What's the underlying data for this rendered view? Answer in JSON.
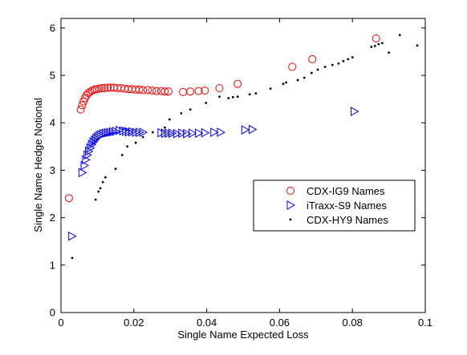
{
  "chart_data": {
    "type": "scatter",
    "title": "",
    "xlabel": "Single Name Expected Loss",
    "ylabel": "Single Name Hedge Notional",
    "xlim": [
      0,
      0.1
    ],
    "ylim": [
      0,
      6.2
    ],
    "xticks": [
      0,
      0.02,
      0.04,
      0.06,
      0.08,
      0.1
    ],
    "xtick_labels": [
      "0",
      "0.02",
      "0.04",
      "0.06",
      "0.08",
      "0.1"
    ],
    "yticks": [
      0,
      1,
      2,
      3,
      4,
      5,
      6
    ],
    "ytick_labels": [
      "0",
      "1",
      "2",
      "3",
      "4",
      "5",
      "6"
    ],
    "grid": false,
    "legend_position": "right",
    "series": [
      {
        "name": "CDX-IG9 Names",
        "marker": "circle",
        "color": "#ff0000",
        "points": [
          [
            0.0022,
            2.41
          ],
          [
            0.0054,
            4.28
          ],
          [
            0.0058,
            4.37
          ],
          [
            0.0062,
            4.45
          ],
          [
            0.0066,
            4.52
          ],
          [
            0.007,
            4.58
          ],
          [
            0.0075,
            4.62
          ],
          [
            0.008,
            4.65
          ],
          [
            0.0086,
            4.68
          ],
          [
            0.0092,
            4.7
          ],
          [
            0.0098,
            4.71
          ],
          [
            0.0105,
            4.72
          ],
          [
            0.0112,
            4.73
          ],
          [
            0.012,
            4.73
          ],
          [
            0.0128,
            4.74
          ],
          [
            0.0136,
            4.74
          ],
          [
            0.0145,
            4.74
          ],
          [
            0.0155,
            4.73
          ],
          [
            0.0165,
            4.73
          ],
          [
            0.0175,
            4.72
          ],
          [
            0.0185,
            4.71
          ],
          [
            0.0195,
            4.71
          ],
          [
            0.0205,
            4.7
          ],
          [
            0.0215,
            4.7
          ],
          [
            0.0225,
            4.69
          ],
          [
            0.0238,
            4.69
          ],
          [
            0.025,
            4.68
          ],
          [
            0.0262,
            4.67
          ],
          [
            0.0275,
            4.67
          ],
          [
            0.0285,
            4.66
          ],
          [
            0.0295,
            4.66
          ],
          [
            0.0335,
            4.65
          ],
          [
            0.0355,
            4.66
          ],
          [
            0.0378,
            4.67
          ],
          [
            0.0395,
            4.68
          ],
          [
            0.0435,
            4.73
          ],
          [
            0.0485,
            4.82
          ],
          [
            0.0635,
            5.18
          ],
          [
            0.069,
            5.34
          ],
          [
            0.0865,
            5.78
          ]
        ]
      },
      {
        "name": "iTraxx-S9 Names",
        "marker": "triangle-right",
        "color": "#0000ff",
        "points": [
          [
            0.003,
            1.61
          ],
          [
            0.0058,
            2.95
          ],
          [
            0.0064,
            3.1
          ],
          [
            0.0068,
            3.22
          ],
          [
            0.0072,
            3.32
          ],
          [
            0.0076,
            3.4
          ],
          [
            0.008,
            3.47
          ],
          [
            0.0084,
            3.54
          ],
          [
            0.0088,
            3.59
          ],
          [
            0.0092,
            3.63
          ],
          [
            0.0096,
            3.67
          ],
          [
            0.01,
            3.7
          ],
          [
            0.0105,
            3.73
          ],
          [
            0.011,
            3.75
          ],
          [
            0.0116,
            3.77
          ],
          [
            0.0122,
            3.78
          ],
          [
            0.0128,
            3.79
          ],
          [
            0.0135,
            3.8
          ],
          [
            0.0142,
            3.81
          ],
          [
            0.015,
            3.82
          ],
          [
            0.016,
            3.84
          ],
          [
            0.017,
            3.83
          ],
          [
            0.0178,
            3.82
          ],
          [
            0.0186,
            3.81
          ],
          [
            0.0195,
            3.81
          ],
          [
            0.0205,
            3.8
          ],
          [
            0.0215,
            3.8
          ],
          [
            0.0225,
            3.8
          ],
          [
            0.0275,
            3.79
          ],
          [
            0.0285,
            3.78
          ],
          [
            0.0295,
            3.78
          ],
          [
            0.0305,
            3.78
          ],
          [
            0.0318,
            3.77
          ],
          [
            0.0332,
            3.78
          ],
          [
            0.0345,
            3.77
          ],
          [
            0.036,
            3.78
          ],
          [
            0.0378,
            3.78
          ],
          [
            0.0395,
            3.79
          ],
          [
            0.042,
            3.8
          ],
          [
            0.0438,
            3.8
          ],
          [
            0.0505,
            3.85
          ],
          [
            0.0525,
            3.86
          ],
          [
            0.0805,
            4.24
          ]
        ]
      },
      {
        "name": "CDX-HY9 Names",
        "marker": "dot",
        "color": "#000000",
        "points": [
          [
            0.0031,
            1.15
          ],
          [
            0.0095,
            2.38
          ],
          [
            0.0103,
            2.55
          ],
          [
            0.0108,
            2.62
          ],
          [
            0.0115,
            2.75
          ],
          [
            0.0122,
            2.85
          ],
          [
            0.015,
            3.03
          ],
          [
            0.0168,
            3.32
          ],
          [
            0.0182,
            3.5
          ],
          [
            0.0205,
            3.58
          ],
          [
            0.0225,
            3.7
          ],
          [
            0.0252,
            3.8
          ],
          [
            0.0285,
            3.9
          ],
          [
            0.0298,
            4.07
          ],
          [
            0.033,
            4.2
          ],
          [
            0.0355,
            4.28
          ],
          [
            0.0398,
            4.42
          ],
          [
            0.0435,
            4.55
          ],
          [
            0.046,
            4.52
          ],
          [
            0.0472,
            4.54
          ],
          [
            0.0485,
            4.55
          ],
          [
            0.0518,
            4.6
          ],
          [
            0.0535,
            4.62
          ],
          [
            0.0575,
            4.72
          ],
          [
            0.061,
            4.82
          ],
          [
            0.0618,
            4.85
          ],
          [
            0.065,
            4.9
          ],
          [
            0.0668,
            4.95
          ],
          [
            0.0688,
            5.05
          ],
          [
            0.0705,
            5.12
          ],
          [
            0.0725,
            5.18
          ],
          [
            0.0745,
            5.22
          ],
          [
            0.0762,
            5.25
          ],
          [
            0.0775,
            5.3
          ],
          [
            0.0788,
            5.34
          ],
          [
            0.08,
            5.38
          ],
          [
            0.0852,
            5.6
          ],
          [
            0.0862,
            5.62
          ],
          [
            0.0872,
            5.66
          ],
          [
            0.0882,
            5.68
          ],
          [
            0.09,
            5.48
          ],
          [
            0.093,
            5.85
          ],
          [
            0.0978,
            5.63
          ]
        ]
      }
    ]
  }
}
